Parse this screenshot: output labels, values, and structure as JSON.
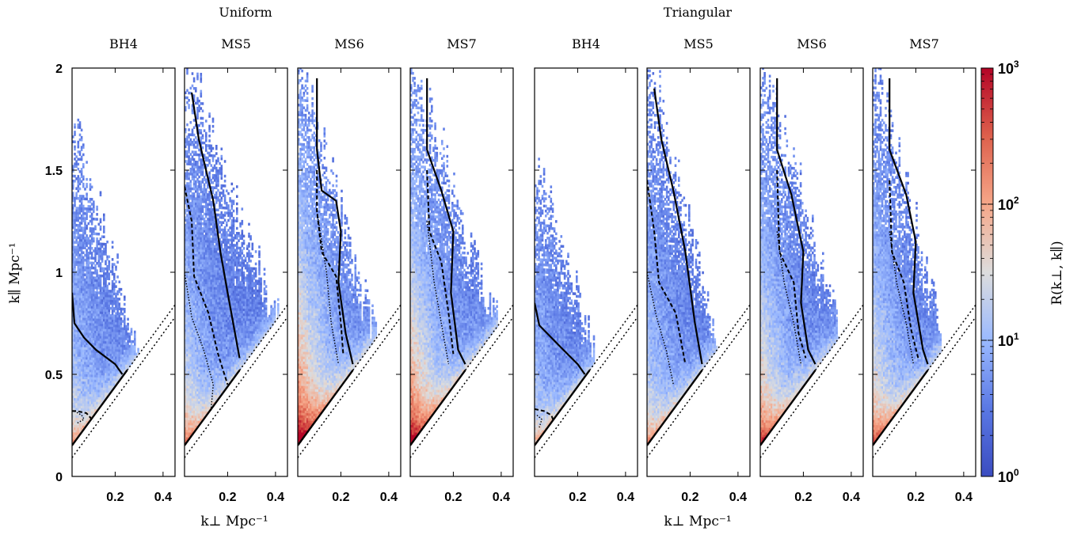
{
  "chart_data": {
    "type": "heatmap",
    "group_titles": [
      "Uniform",
      "Triangular"
    ],
    "panel_titles": [
      "BH4",
      "MS5",
      "MS6",
      "MS7",
      "BH4",
      "MS5",
      "MS6",
      "MS7"
    ],
    "xlabel": "k⊥ Mpc⁻¹",
    "ylabel": "k∥ Mpc⁻¹",
    "xlim": [
      0.02,
      0.45
    ],
    "ylim": [
      0,
      2
    ],
    "x_ticks": [
      "0.2",
      "0.4"
    ],
    "x_tick_values": [
      0.2,
      0.4
    ],
    "y_ticks": [
      "0",
      "0.5",
      "1",
      "1.5",
      "2"
    ],
    "y_tick_values": [
      0,
      0.5,
      1,
      1.5,
      2
    ],
    "colorbar": {
      "label": "R(k⊥, k∥)",
      "scale": "log",
      "range": [
        1,
        1000
      ],
      "ticks": [
        {
          "value": 1,
          "base": "10",
          "exp": "0"
        },
        {
          "value": 10,
          "base": "10",
          "exp": "1"
        },
        {
          "value": 100,
          "base": "10",
          "exp": "2"
        },
        {
          "value": 1000,
          "base": "10",
          "exp": "3"
        }
      ],
      "colors": [
        "#3b4cc0",
        "#5a78e4",
        "#9ab9ff",
        "#dddddd",
        "#f6a789",
        "#dd604c",
        "#b40426"
      ]
    },
    "wedge_lines": {
      "solid_horizon": {
        "slope": 1.6,
        "intercept": 0.12
      },
      "dotted_horizon": {
        "slope": 1.6,
        "intercept": 0.06
      }
    },
    "panels": [
      {
        "group": "Uniform",
        "title": "BH4",
        "max_k_par": 1.65,
        "data_edge_k_perp": 0.3,
        "warm_level": 0.35,
        "contour_solid": [
          [
            0.02,
            0.9
          ],
          [
            0.03,
            0.75
          ],
          [
            0.07,
            0.68
          ],
          [
            0.12,
            0.62
          ],
          [
            0.2,
            0.55
          ],
          [
            0.23,
            0.5
          ]
        ],
        "contour_dashed": [
          [
            0.02,
            0.32
          ],
          [
            0.04,
            0.32
          ],
          [
            0.08,
            0.31
          ],
          [
            0.11,
            0.27
          ]
        ],
        "contour_dotted": [
          [
            0.03,
            0.32
          ],
          [
            0.06,
            0.3
          ],
          [
            0.07,
            0.28
          ],
          [
            0.04,
            0.26
          ]
        ]
      },
      {
        "group": "Uniform",
        "title": "MS5",
        "max_k_par": 2.0,
        "data_edge_k_perp": 0.45,
        "warm_level": 0.45,
        "contour_solid": [
          [
            0.05,
            1.88
          ],
          [
            0.08,
            1.65
          ],
          [
            0.14,
            1.35
          ],
          [
            0.17,
            1.1
          ],
          [
            0.2,
            0.9
          ],
          [
            0.25,
            0.58
          ]
        ],
        "contour_dashed": [
          [
            0.02,
            1.42
          ],
          [
            0.05,
            1.25
          ],
          [
            0.06,
            0.98
          ],
          [
            0.12,
            0.8
          ],
          [
            0.16,
            0.6
          ],
          [
            0.2,
            0.45
          ]
        ],
        "contour_dotted": [
          [
            0.02,
            1.0
          ],
          [
            0.05,
            0.78
          ],
          [
            0.1,
            0.62
          ],
          [
            0.14,
            0.45
          ],
          [
            0.13,
            0.32
          ]
        ]
      },
      {
        "group": "Uniform",
        "title": "MS6",
        "max_k_par": 2.0,
        "data_edge_k_perp": 0.36,
        "warm_level": 0.8,
        "contour_solid": [
          [
            0.1,
            1.95
          ],
          [
            0.1,
            1.6
          ],
          [
            0.12,
            1.4
          ],
          [
            0.18,
            1.35
          ],
          [
            0.2,
            1.2
          ],
          [
            0.19,
            0.95
          ],
          [
            0.22,
            0.7
          ],
          [
            0.25,
            0.55
          ]
        ],
        "contour_dashed": [
          [
            0.1,
            1.5
          ],
          [
            0.1,
            1.3
          ],
          [
            0.12,
            1.1
          ],
          [
            0.18,
            0.98
          ],
          [
            0.2,
            0.75
          ],
          [
            0.21,
            0.6
          ]
        ],
        "contour_dotted": [
          [
            0.1,
            1.3
          ],
          [
            0.14,
            1.0
          ],
          [
            0.16,
            0.75
          ],
          [
            0.19,
            0.55
          ]
        ]
      },
      {
        "group": "Uniform",
        "title": "MS7",
        "max_k_par": 2.0,
        "data_edge_k_perp": 0.42,
        "warm_level": 0.75,
        "contour_solid": [
          [
            0.09,
            1.95
          ],
          [
            0.09,
            1.6
          ],
          [
            0.15,
            1.4
          ],
          [
            0.2,
            1.2
          ],
          [
            0.19,
            0.9
          ],
          [
            0.22,
            0.62
          ],
          [
            0.25,
            0.55
          ]
        ],
        "contour_dashed": [
          [
            0.09,
            1.5
          ],
          [
            0.1,
            1.2
          ],
          [
            0.15,
            1.05
          ],
          [
            0.18,
            0.8
          ],
          [
            0.2,
            0.6
          ]
        ],
        "contour_dotted": [
          [
            0.09,
            1.25
          ],
          [
            0.12,
            0.95
          ],
          [
            0.15,
            0.75
          ],
          [
            0.18,
            0.55
          ]
        ]
      },
      {
        "group": "Triangular",
        "title": "BH4",
        "max_k_par": 1.55,
        "data_edge_k_perp": 0.28,
        "warm_level": 0.3,
        "contour_solid": [
          [
            0.02,
            0.85
          ],
          [
            0.04,
            0.74
          ],
          [
            0.09,
            0.68
          ],
          [
            0.14,
            0.62
          ],
          [
            0.2,
            0.55
          ],
          [
            0.23,
            0.5
          ]
        ],
        "contour_dashed": [
          [
            0.02,
            0.33
          ],
          [
            0.06,
            0.32
          ],
          [
            0.09,
            0.3
          ],
          [
            0.1,
            0.27
          ]
        ],
        "contour_dotted": [
          [
            0.03,
            0.3
          ],
          [
            0.05,
            0.28
          ],
          [
            0.04,
            0.24
          ]
        ]
      },
      {
        "group": "Triangular",
        "title": "MS5",
        "max_k_par": 2.0,
        "data_edge_k_perp": 0.32,
        "warm_level": 0.4,
        "contour_solid": [
          [
            0.05,
            1.9
          ],
          [
            0.08,
            1.65
          ],
          [
            0.13,
            1.4
          ],
          [
            0.18,
            1.1
          ],
          [
            0.22,
            0.75
          ],
          [
            0.25,
            0.55
          ]
        ],
        "contour_dashed": [
          [
            0.02,
            1.45
          ],
          [
            0.05,
            1.2
          ],
          [
            0.07,
            0.95
          ],
          [
            0.14,
            0.8
          ],
          [
            0.18,
            0.55
          ]
        ],
        "contour_dotted": [
          [
            0.02,
            1.0
          ],
          [
            0.06,
            0.78
          ],
          [
            0.1,
            0.62
          ],
          [
            0.13,
            0.45
          ]
        ]
      },
      {
        "group": "Triangular",
        "title": "MS6",
        "max_k_par": 2.0,
        "data_edge_k_perp": 0.38,
        "warm_level": 0.6,
        "contour_solid": [
          [
            0.09,
            1.95
          ],
          [
            0.09,
            1.6
          ],
          [
            0.15,
            1.38
          ],
          [
            0.2,
            1.1
          ],
          [
            0.19,
            0.85
          ],
          [
            0.22,
            0.62
          ],
          [
            0.25,
            0.55
          ]
        ],
        "contour_dashed": [
          [
            0.09,
            1.5
          ],
          [
            0.1,
            1.1
          ],
          [
            0.16,
            0.95
          ],
          [
            0.18,
            0.7
          ],
          [
            0.21,
            0.58
          ]
        ],
        "contour_dotted": [
          [
            0.09,
            1.2
          ],
          [
            0.12,
            0.95
          ],
          [
            0.16,
            0.75
          ],
          [
            0.19,
            0.55
          ]
        ]
      },
      {
        "group": "Triangular",
        "title": "MS7",
        "max_k_par": 2.0,
        "data_edge_k_perp": 0.33,
        "warm_level": 0.55,
        "contour_solid": [
          [
            0.09,
            1.95
          ],
          [
            0.09,
            1.6
          ],
          [
            0.16,
            1.38
          ],
          [
            0.2,
            1.15
          ],
          [
            0.19,
            0.9
          ],
          [
            0.23,
            0.62
          ],
          [
            0.25,
            0.55
          ]
        ],
        "contour_dashed": [
          [
            0.09,
            1.45
          ],
          [
            0.1,
            1.1
          ],
          [
            0.15,
            0.95
          ],
          [
            0.18,
            0.72
          ],
          [
            0.21,
            0.58
          ]
        ],
        "contour_dotted": [
          [
            0.09,
            1.2
          ],
          [
            0.12,
            0.95
          ],
          [
            0.16,
            0.75
          ],
          [
            0.19,
            0.55
          ]
        ]
      }
    ]
  }
}
